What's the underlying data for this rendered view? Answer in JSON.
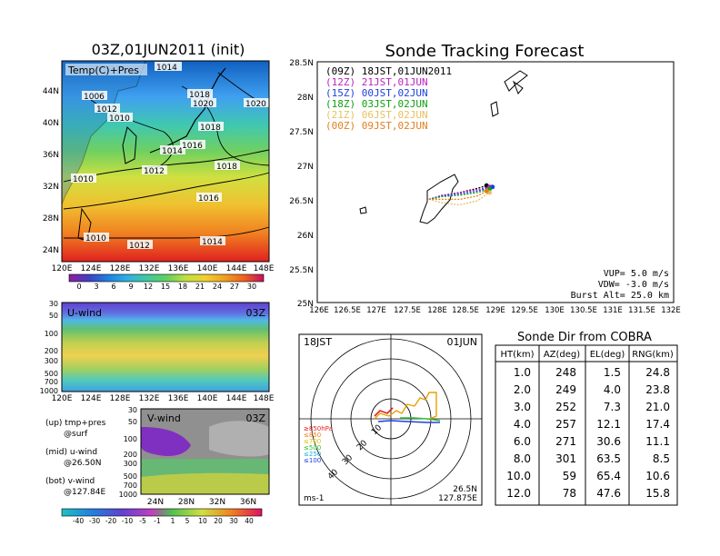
{
  "left": {
    "title": "03Z,01JUN2011 (init)",
    "map": {
      "label": "Temp(C)+Pres",
      "lat_ticks": [
        "44N",
        "40N",
        "36N",
        "32N",
        "28N",
        "24N"
      ],
      "lon_ticks": [
        "120E",
        "124E",
        "128E",
        "132E",
        "136E",
        "140E",
        "144E",
        "148E"
      ],
      "isobars": [
        "1014",
        "1016",
        "1006",
        "1012",
        "1010",
        "1018",
        "1020",
        "1018",
        "1014",
        "1016",
        "1012",
        "1018",
        "1010",
        "1016",
        "1010",
        "1012",
        "1014"
      ],
      "colorbar_ticks": [
        "0",
        "3",
        "6",
        "9",
        "12",
        "15",
        "18",
        "21",
        "24",
        "27",
        "30"
      ]
    },
    "uwind": {
      "label": "U-wind",
      "time": "03Z",
      "y_ticks": [
        "30",
        "50",
        "100",
        "200",
        "300",
        "500",
        "700",
        "1000"
      ],
      "x_ticks": [
        "120E",
        "124E",
        "128E",
        "132E",
        "136E",
        "140E",
        "144E",
        "148E"
      ]
    },
    "vwind": {
      "label": "V-wind",
      "time": "03Z",
      "y_ticks": [
        "30",
        "50",
        "100",
        "200",
        "300",
        "500",
        "700",
        "1000"
      ],
      "x_ticks": [
        "24N",
        "28N",
        "32N",
        "36N"
      ],
      "colorbar_ticks": [
        "-40",
        "-30",
        "-20",
        "-10",
        "-5",
        "-1",
        "1",
        "5",
        "10",
        "20",
        "30",
        "40"
      ]
    },
    "notes": [
      "(up) tmp+pres",
      "@surf",
      "(mid) u-wind",
      "@26.50N",
      "(bot) v-wind",
      "@127.84E"
    ]
  },
  "tracking": {
    "title": "Sonde Tracking Forecast",
    "legend": [
      {
        "text": "(09Z) 18JST,01JUN2011",
        "color": "#000000"
      },
      {
        "text": "(12Z) 21JST,01JUN",
        "color": "#c020c0"
      },
      {
        "text": "(15Z) 00JST,02JUN",
        "color": "#2040e0"
      },
      {
        "text": "(18Z) 03JST,02JUN",
        "color": "#10a010"
      },
      {
        "text": "(21Z) 06JST,02JUN",
        "color": "#e8c060"
      },
      {
        "text": "(00Z) 09JST,02JUN",
        "color": "#e08020"
      }
    ],
    "lat_ticks": [
      "28.5N",
      "28N",
      "27.5N",
      "27N",
      "26.5N",
      "26N",
      "25.5N",
      "25N"
    ],
    "lon_ticks": [
      "126E",
      "126.5E",
      "127E",
      "127.5E",
      "128E",
      "128.5E",
      "129E",
      "129.5E",
      "130E",
      "130.5E",
      "131E",
      "131.5E",
      "132E"
    ],
    "params": [
      "VUP= 5.0 m/s",
      "VDW= -3.0 m/s",
      "Burst Alt= 25.0 km"
    ]
  },
  "polar": {
    "time_label": "18JST",
    "date_label": "01JUN",
    "ring_labels": [
      "10",
      "20",
      "30",
      "40"
    ],
    "level_legend": [
      {
        "text": "≥850hPa",
        "color": "#e02020"
      },
      {
        "text": "≤850",
        "color": "#f08020"
      },
      {
        "text": "≤700",
        "color": "#e8c000"
      },
      {
        "text": "≤500",
        "color": "#30c030"
      },
      {
        "text": "≤250",
        "color": "#20b0e0"
      },
      {
        "text": "≤100",
        "color": "#2040e0"
      }
    ],
    "unit": "ms-1",
    "pos1": "26.5N",
    "pos2": "127.875E"
  },
  "table": {
    "title": "Sonde Dir from COBRA",
    "headers": [
      "HT(km)",
      "AZ(deg)",
      "EL(deg)",
      "RNG(km)"
    ],
    "rows": [
      [
        "1.0",
        "248",
        "1.5",
        "24.8"
      ],
      [
        "2.0",
        "249",
        "4.0",
        "23.8"
      ],
      [
        "3.0",
        "252",
        "7.3",
        "21.0"
      ],
      [
        "4.0",
        "257",
        "12.1",
        "17.4"
      ],
      [
        "6.0",
        "271",
        "30.6",
        "11.1"
      ],
      [
        "8.0",
        "301",
        "63.5",
        "8.5"
      ],
      [
        "10.0",
        "59",
        "65.4",
        "10.6"
      ],
      [
        "12.0",
        "78",
        "47.6",
        "15.8"
      ]
    ]
  },
  "chart_data": [
    {
      "type": "table",
      "title": "Sonde Dir from COBRA",
      "columns": [
        "HT(km)",
        "AZ(deg)",
        "EL(deg)",
        "RNG(km)"
      ],
      "rows": [
        [
          1.0,
          248,
          1.5,
          24.8
        ],
        [
          2.0,
          249,
          4.0,
          23.8
        ],
        [
          3.0,
          252,
          7.3,
          21.0
        ],
        [
          4.0,
          257,
          12.1,
          17.4
        ],
        [
          6.0,
          271,
          30.6,
          11.1
        ],
        [
          8.0,
          301,
          63.5,
          8.5
        ],
        [
          10.0,
          59,
          65.4,
          10.6
        ],
        [
          12.0,
          78,
          47.6,
          15.8
        ]
      ]
    },
    {
      "type": "line",
      "title": "Sonde Tracking Forecast",
      "xlim": [
        126,
        132
      ],
      "ylim": [
        25,
        28.5
      ],
      "series": [
        {
          "name": "(09Z) 18JST,01JUN2011",
          "x": [
            127.88,
            128.1,
            128.4,
            128.7,
            128.85
          ],
          "y": [
            26.5,
            26.55,
            26.6,
            26.66,
            26.7
          ]
        },
        {
          "name": "(12Z) 21JST,01JUN",
          "x": [
            127.88,
            128.1,
            128.4,
            128.7,
            128.9
          ],
          "y": [
            26.5,
            26.56,
            26.6,
            26.64,
            26.68
          ]
        },
        {
          "name": "(15Z) 00JST,02JUN",
          "x": [
            127.88,
            128.1,
            128.4,
            128.7,
            128.95
          ],
          "y": [
            26.5,
            26.55,
            26.58,
            26.62,
            26.68
          ]
        },
        {
          "name": "(18Z) 03JST,02JUN",
          "x": [
            127.88,
            128.1,
            128.4,
            128.7,
            128.9
          ],
          "y": [
            26.5,
            26.54,
            26.56,
            26.6,
            26.65
          ]
        },
        {
          "name": "(21Z) 06JST,02JUN",
          "x": [
            127.88,
            128.1,
            128.4,
            128.7,
            128.9
          ],
          "y": [
            26.5,
            26.45,
            26.42,
            26.48,
            26.6
          ]
        },
        {
          "name": "(00Z) 09JST,02JUN",
          "x": [
            127.88,
            128.1,
            128.4,
            128.7,
            128.85
          ],
          "y": [
            26.5,
            26.5,
            26.5,
            26.55,
            26.62
          ]
        }
      ]
    }
  ]
}
